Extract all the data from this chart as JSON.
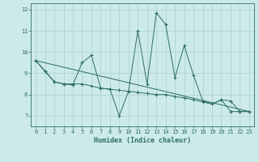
{
  "background_color": "#cdeaea",
  "grid_color": "#b0d4d4",
  "line_color": "#2e6e65",
  "xlabel": "Humidex (Indice chaleur)",
  "xlim": [
    -0.5,
    23.5
  ],
  "ylim": [
    6.5,
    12.3
  ],
  "xticks": [
    0,
    1,
    2,
    3,
    4,
    5,
    6,
    7,
    8,
    9,
    10,
    11,
    12,
    13,
    14,
    15,
    16,
    17,
    18,
    19,
    20,
    21,
    22,
    23
  ],
  "yticks": [
    7,
    8,
    9,
    10,
    11,
    12
  ],
  "series_smooth": {
    "x": [
      0,
      1,
      2,
      3,
      4,
      5,
      6,
      7,
      8,
      9,
      10,
      11,
      12,
      13,
      14,
      15,
      16,
      17,
      18,
      19,
      20,
      21,
      22,
      23
    ],
    "y": [
      9.6,
      9.1,
      8.6,
      8.5,
      8.5,
      8.5,
      8.4,
      8.3,
      8.25,
      8.2,
      8.15,
      8.1,
      8.05,
      8.0,
      8.0,
      7.9,
      7.85,
      7.75,
      7.65,
      7.55,
      7.75,
      7.2,
      7.2,
      7.2
    ]
  },
  "series_spiky": {
    "x": [
      0,
      1,
      2,
      3,
      4,
      5,
      6,
      7,
      8,
      9,
      10,
      11,
      12,
      13,
      14,
      15,
      16,
      17,
      18,
      19,
      20,
      21,
      22,
      23
    ],
    "y": [
      9.6,
      9.1,
      8.6,
      8.5,
      8.45,
      9.5,
      9.85,
      8.3,
      8.25,
      7.0,
      8.15,
      11.0,
      8.5,
      11.85,
      11.3,
      8.8,
      10.3,
      8.9,
      7.7,
      7.55,
      7.75,
      7.7,
      7.2,
      7.2
    ]
  },
  "series_trend": {
    "x": [
      0,
      23
    ],
    "y": [
      9.6,
      7.2
    ]
  },
  "xlabel_fontsize": 6,
  "tick_fontsize": 5
}
